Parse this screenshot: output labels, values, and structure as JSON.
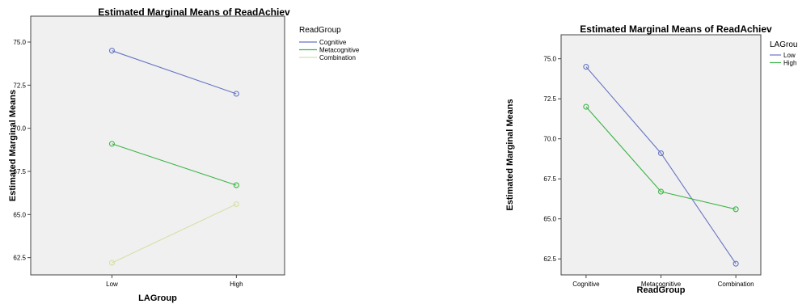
{
  "chart_data": [
    {
      "type": "line",
      "title": "Estimated Marginal Means of ReadAchiev",
      "xlabel": "LAGroup",
      "ylabel": "Estimated Marginal Means",
      "categories": [
        "Low",
        "High"
      ],
      "ylim": [
        61.5,
        76.5
      ],
      "yticks": [
        "62.5",
        "65.0",
        "67.5",
        "70.0",
        "72.5",
        "75.0"
      ],
      "legend_title": "ReadGroup",
      "legend_position": "right",
      "series": [
        {
          "name": "Cognitive",
          "values": [
            74.5,
            72.0
          ],
          "color": "#6674c4"
        },
        {
          "name": "Metacognitive",
          "values": [
            69.1,
            66.7
          ],
          "color": "#3db547"
        },
        {
          "name": "Combination",
          "values": [
            62.2,
            65.6
          ],
          "color": "#d7dfa8"
        }
      ]
    },
    {
      "type": "line",
      "title": "Estimated Marginal Means of ReadAchiev",
      "xlabel": "ReadGroup",
      "ylabel": "Estimated Marginal Means",
      "categories": [
        "Cognitive",
        "Metacognitive",
        "Combination"
      ],
      "ylim": [
        61.5,
        76.5
      ],
      "yticks": [
        "62.5",
        "65.0",
        "67.5",
        "70.0",
        "72.5",
        "75.0"
      ],
      "legend_title": "LAGroup",
      "legend_position": "right",
      "series": [
        {
          "name": "Low",
          "values": [
            74.5,
            69.1,
            62.2
          ],
          "color": "#6674c4"
        },
        {
          "name": "High",
          "values": [
            72.0,
            66.7,
            65.6
          ],
          "color": "#3db547"
        }
      ]
    }
  ]
}
